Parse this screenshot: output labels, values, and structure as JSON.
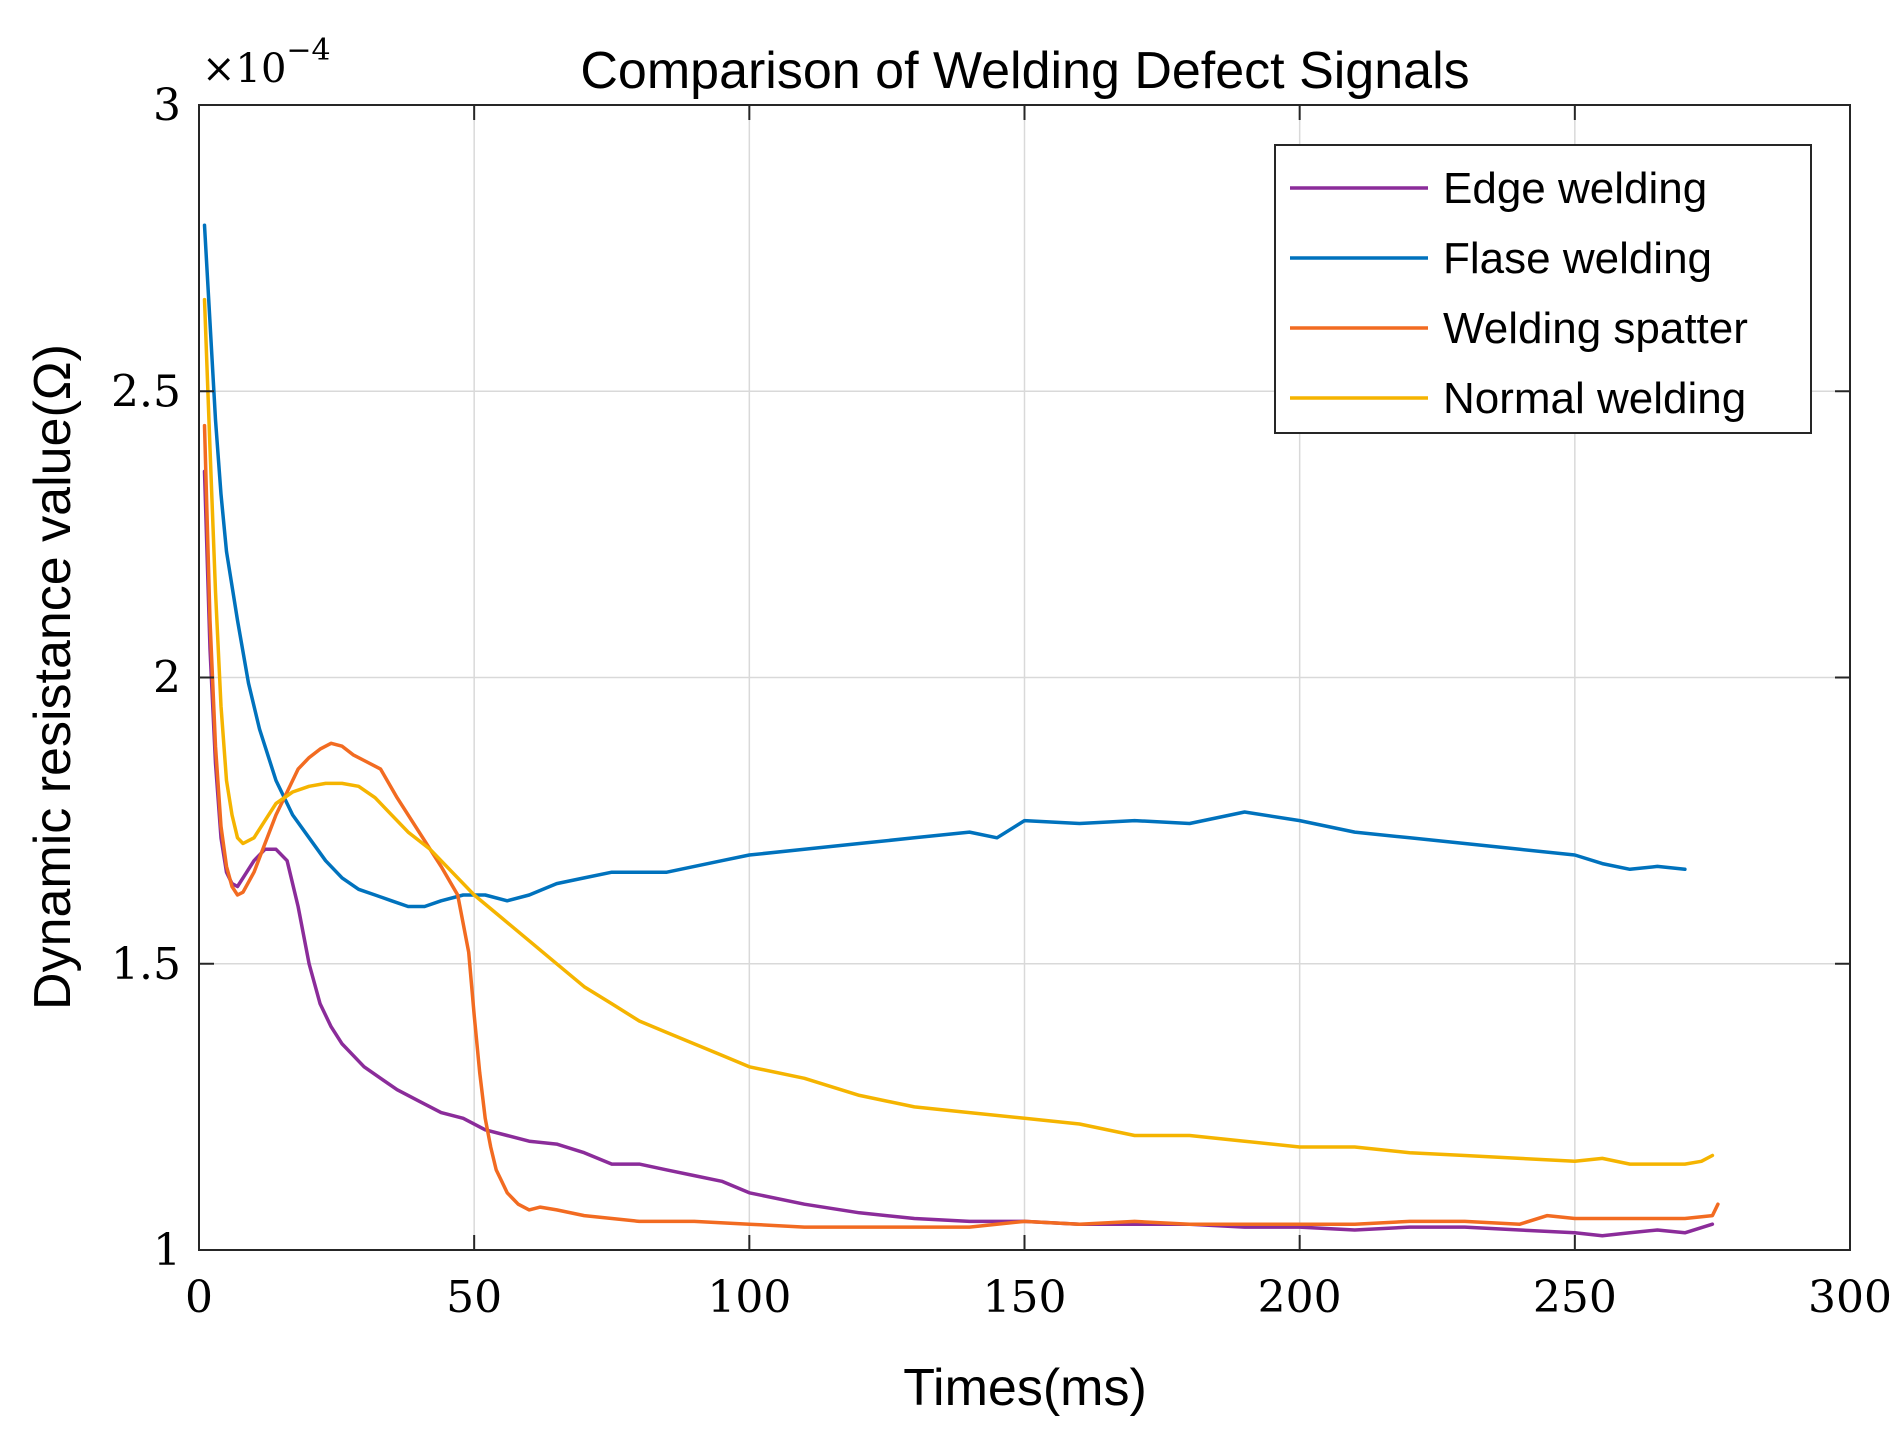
{
  "chart_data": {
    "type": "line",
    "title": "Comparison of Welding Defect Signals",
    "xlabel": "Times(ms)",
    "ylabel": "Dynamic resistance value(Ω)",
    "y_multiplier": "×10",
    "y_multiplier_exponent": "−4",
    "xlim": [
      0,
      300
    ],
    "ylim": [
      1,
      3
    ],
    "xticks": [
      0,
      50,
      100,
      150,
      200,
      250,
      300
    ],
    "xtick_labels": [
      "0",
      "50",
      "100",
      "150",
      "200",
      "250",
      "300"
    ],
    "yticks": [
      1,
      1.5,
      2,
      2.5,
      3
    ],
    "ytick_labels": [
      "1",
      "1.5",
      "2",
      "2.5",
      "3"
    ],
    "grid": true,
    "legend_position": "top-right",
    "series": [
      {
        "name": "Edge welding",
        "color": "#8B2C9A",
        "x": [
          1,
          2,
          3,
          4,
          5,
          6,
          7,
          8,
          10,
          12,
          14,
          16,
          18,
          20,
          22,
          24,
          26,
          28,
          30,
          33,
          36,
          40,
          44,
          48,
          52,
          56,
          60,
          65,
          70,
          75,
          80,
          85,
          90,
          95,
          100,
          110,
          120,
          130,
          140,
          150,
          160,
          170,
          180,
          190,
          200,
          210,
          220,
          230,
          240,
          250,
          255,
          260,
          265,
          270,
          275
        ],
        "y": [
          2.36,
          2.05,
          1.85,
          1.72,
          1.66,
          1.64,
          1.635,
          1.65,
          1.68,
          1.7,
          1.7,
          1.68,
          1.6,
          1.5,
          1.43,
          1.39,
          1.36,
          1.34,
          1.32,
          1.3,
          1.28,
          1.26,
          1.24,
          1.23,
          1.21,
          1.2,
          1.19,
          1.185,
          1.17,
          1.15,
          1.15,
          1.14,
          1.13,
          1.12,
          1.1,
          1.08,
          1.065,
          1.055,
          1.05,
          1.05,
          1.045,
          1.045,
          1.045,
          1.04,
          1.04,
          1.035,
          1.04,
          1.04,
          1.035,
          1.03,
          1.025,
          1.03,
          1.035,
          1.03,
          1.045
        ]
      },
      {
        "name": "Flase welding",
        "color": "#0072BD",
        "x": [
          1,
          2,
          3,
          4,
          5,
          7,
          9,
          11,
          14,
          17,
          20,
          23,
          26,
          29,
          32,
          35,
          38,
          41,
          44,
          48,
          52,
          56,
          60,
          65,
          70,
          75,
          80,
          85,
          90,
          95,
          100,
          110,
          120,
          130,
          140,
          145,
          150,
          160,
          170,
          180,
          190,
          200,
          210,
          220,
          230,
          240,
          250,
          255,
          260,
          265,
          270
        ],
        "y": [
          2.79,
          2.62,
          2.45,
          2.32,
          2.22,
          2.1,
          1.99,
          1.91,
          1.82,
          1.76,
          1.72,
          1.68,
          1.65,
          1.63,
          1.62,
          1.61,
          1.6,
          1.6,
          1.61,
          1.62,
          1.62,
          1.61,
          1.62,
          1.64,
          1.65,
          1.66,
          1.66,
          1.66,
          1.67,
          1.68,
          1.69,
          1.7,
          1.71,
          1.72,
          1.73,
          1.72,
          1.75,
          1.745,
          1.75,
          1.745,
          1.765,
          1.75,
          1.73,
          1.72,
          1.71,
          1.7,
          1.69,
          1.675,
          1.665,
          1.67,
          1.665
        ]
      },
      {
        "name": "Welding spatter",
        "color": "#F26B21",
        "x": [
          1,
          2,
          3,
          4,
          5,
          6,
          7,
          8,
          10,
          12,
          14,
          16,
          18,
          20,
          22,
          24,
          26,
          28,
          30,
          33,
          36,
          40,
          44,
          47,
          49,
          50,
          51,
          52,
          53,
          54,
          55,
          56,
          57,
          58,
          59,
          60,
          62,
          65,
          70,
          80,
          90,
          100,
          110,
          120,
          130,
          140,
          150,
          160,
          170,
          180,
          190,
          200,
          210,
          220,
          230,
          240,
          245,
          250,
          260,
          270,
          275,
          276
        ],
        "y": [
          2.44,
          2.1,
          1.88,
          1.74,
          1.67,
          1.635,
          1.62,
          1.625,
          1.66,
          1.71,
          1.76,
          1.8,
          1.84,
          1.86,
          1.875,
          1.885,
          1.88,
          1.865,
          1.855,
          1.84,
          1.79,
          1.73,
          1.67,
          1.62,
          1.52,
          1.41,
          1.31,
          1.23,
          1.18,
          1.14,
          1.12,
          1.1,
          1.09,
          1.08,
          1.075,
          1.07,
          1.075,
          1.07,
          1.06,
          1.05,
          1.05,
          1.045,
          1.04,
          1.04,
          1.04,
          1.04,
          1.05,
          1.045,
          1.05,
          1.045,
          1.045,
          1.045,
          1.045,
          1.05,
          1.05,
          1.045,
          1.06,
          1.055,
          1.055,
          1.055,
          1.06,
          1.08
        ]
      },
      {
        "name": "Normal welding",
        "color": "#F5B400",
        "x": [
          1,
          2,
          3,
          4,
          5,
          6,
          7,
          8,
          10,
          12,
          14,
          17,
          20,
          23,
          26,
          29,
          32,
          35,
          38,
          42,
          46,
          50,
          55,
          60,
          65,
          70,
          75,
          80,
          85,
          90,
          95,
          100,
          110,
          120,
          130,
          140,
          150,
          160,
          170,
          180,
          190,
          200,
          210,
          220,
          230,
          240,
          250,
          255,
          260,
          265,
          270,
          273,
          275
        ],
        "y": [
          2.66,
          2.4,
          2.15,
          1.95,
          1.82,
          1.76,
          1.72,
          1.71,
          1.72,
          1.75,
          1.78,
          1.8,
          1.81,
          1.815,
          1.815,
          1.81,
          1.79,
          1.76,
          1.73,
          1.7,
          1.66,
          1.62,
          1.58,
          1.54,
          1.5,
          1.46,
          1.43,
          1.4,
          1.38,
          1.36,
          1.34,
          1.32,
          1.3,
          1.27,
          1.25,
          1.24,
          1.23,
          1.22,
          1.2,
          1.2,
          1.19,
          1.18,
          1.18,
          1.17,
          1.165,
          1.16,
          1.155,
          1.16,
          1.15,
          1.15,
          1.15,
          1.155,
          1.165
        ]
      }
    ]
  }
}
